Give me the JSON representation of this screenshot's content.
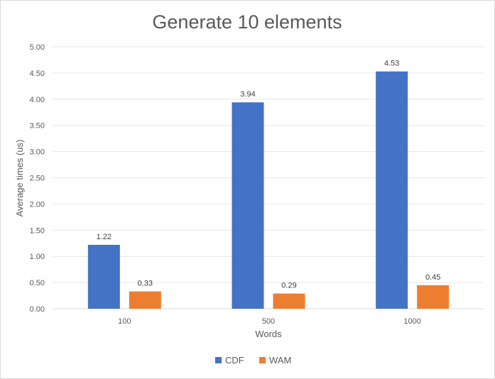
{
  "chart_data": {
    "type": "bar",
    "title": "Generate 10 elements",
    "xlabel": "Words",
    "ylabel": "Average times (us)",
    "categories": [
      "100",
      "500",
      "1000"
    ],
    "series": [
      {
        "name": "CDF",
        "values": [
          1.22,
          3.94,
          4.53
        ],
        "labels": [
          "1.22",
          "3.94",
          "4.53"
        ],
        "color": "#4472C4"
      },
      {
        "name": "WAM",
        "values": [
          0.33,
          0.29,
          0.45
        ],
        "labels": [
          "0.33",
          "0.29",
          "0.45"
        ],
        "color": "#ED7D31"
      }
    ],
    "ylim": [
      0,
      5
    ],
    "yticks": [
      "0.00",
      "0.50",
      "1.00",
      "1.50",
      "2.00",
      "2.50",
      "3.00",
      "3.50",
      "4.00",
      "4.50",
      "5.00"
    ],
    "grid": true,
    "legend": "bottom"
  }
}
